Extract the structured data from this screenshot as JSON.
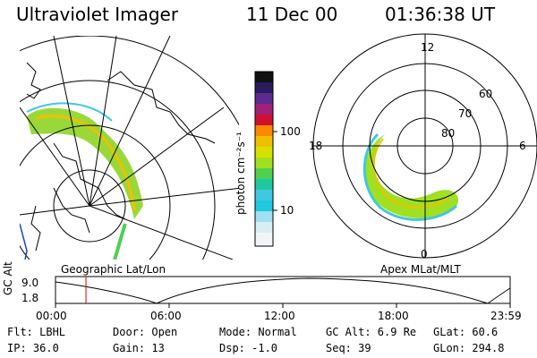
{
  "header": {
    "instrument": "Ultraviolet Imager",
    "date": "11 Dec 00",
    "time": "01:36:38 UT"
  },
  "colorbar": {
    "unit_label": "photon cm⁻²s⁻¹",
    "ticks": [
      "100",
      "10"
    ],
    "colors": [
      "#111111",
      "#2a1a60",
      "#5e2a90",
      "#a0207a",
      "#d01030",
      "#ff2000",
      "#ff8800",
      "#f0c000",
      "#d8e000",
      "#a0e020",
      "#50d050",
      "#20c8a0",
      "#40c8e0",
      "#a0e0f0",
      "#e8f4f8"
    ]
  },
  "polar_plot": {
    "mlt_labels": [
      "12",
      "18",
      "6",
      "0"
    ],
    "lat_labels": [
      "60",
      "70",
      "80"
    ]
  },
  "plot_labels": {
    "left": "Geographic Lat/Lon",
    "right": "Apex MLat/MLT"
  },
  "timeline": {
    "axis_label": "GC Alt",
    "y_ticks": [
      "9.0",
      "1.8"
    ],
    "x_ticks": [
      "00:00",
      "06:00",
      "12:00",
      "18:00",
      "23:59"
    ],
    "current_fraction": 0.067
  },
  "status": {
    "flt": "Flt: LBHL",
    "ip": "IP: 36.0",
    "door": "Door: Open",
    "gain": "Gain: 13",
    "mode": "Mode: Normal",
    "dsp": "Dsp:   -1.0",
    "gc_alt": "GC Alt: 6.9 Re",
    "seq": "Seq: 39",
    "glat": "GLat: 60.6",
    "glon": "GLon: 294.8"
  }
}
